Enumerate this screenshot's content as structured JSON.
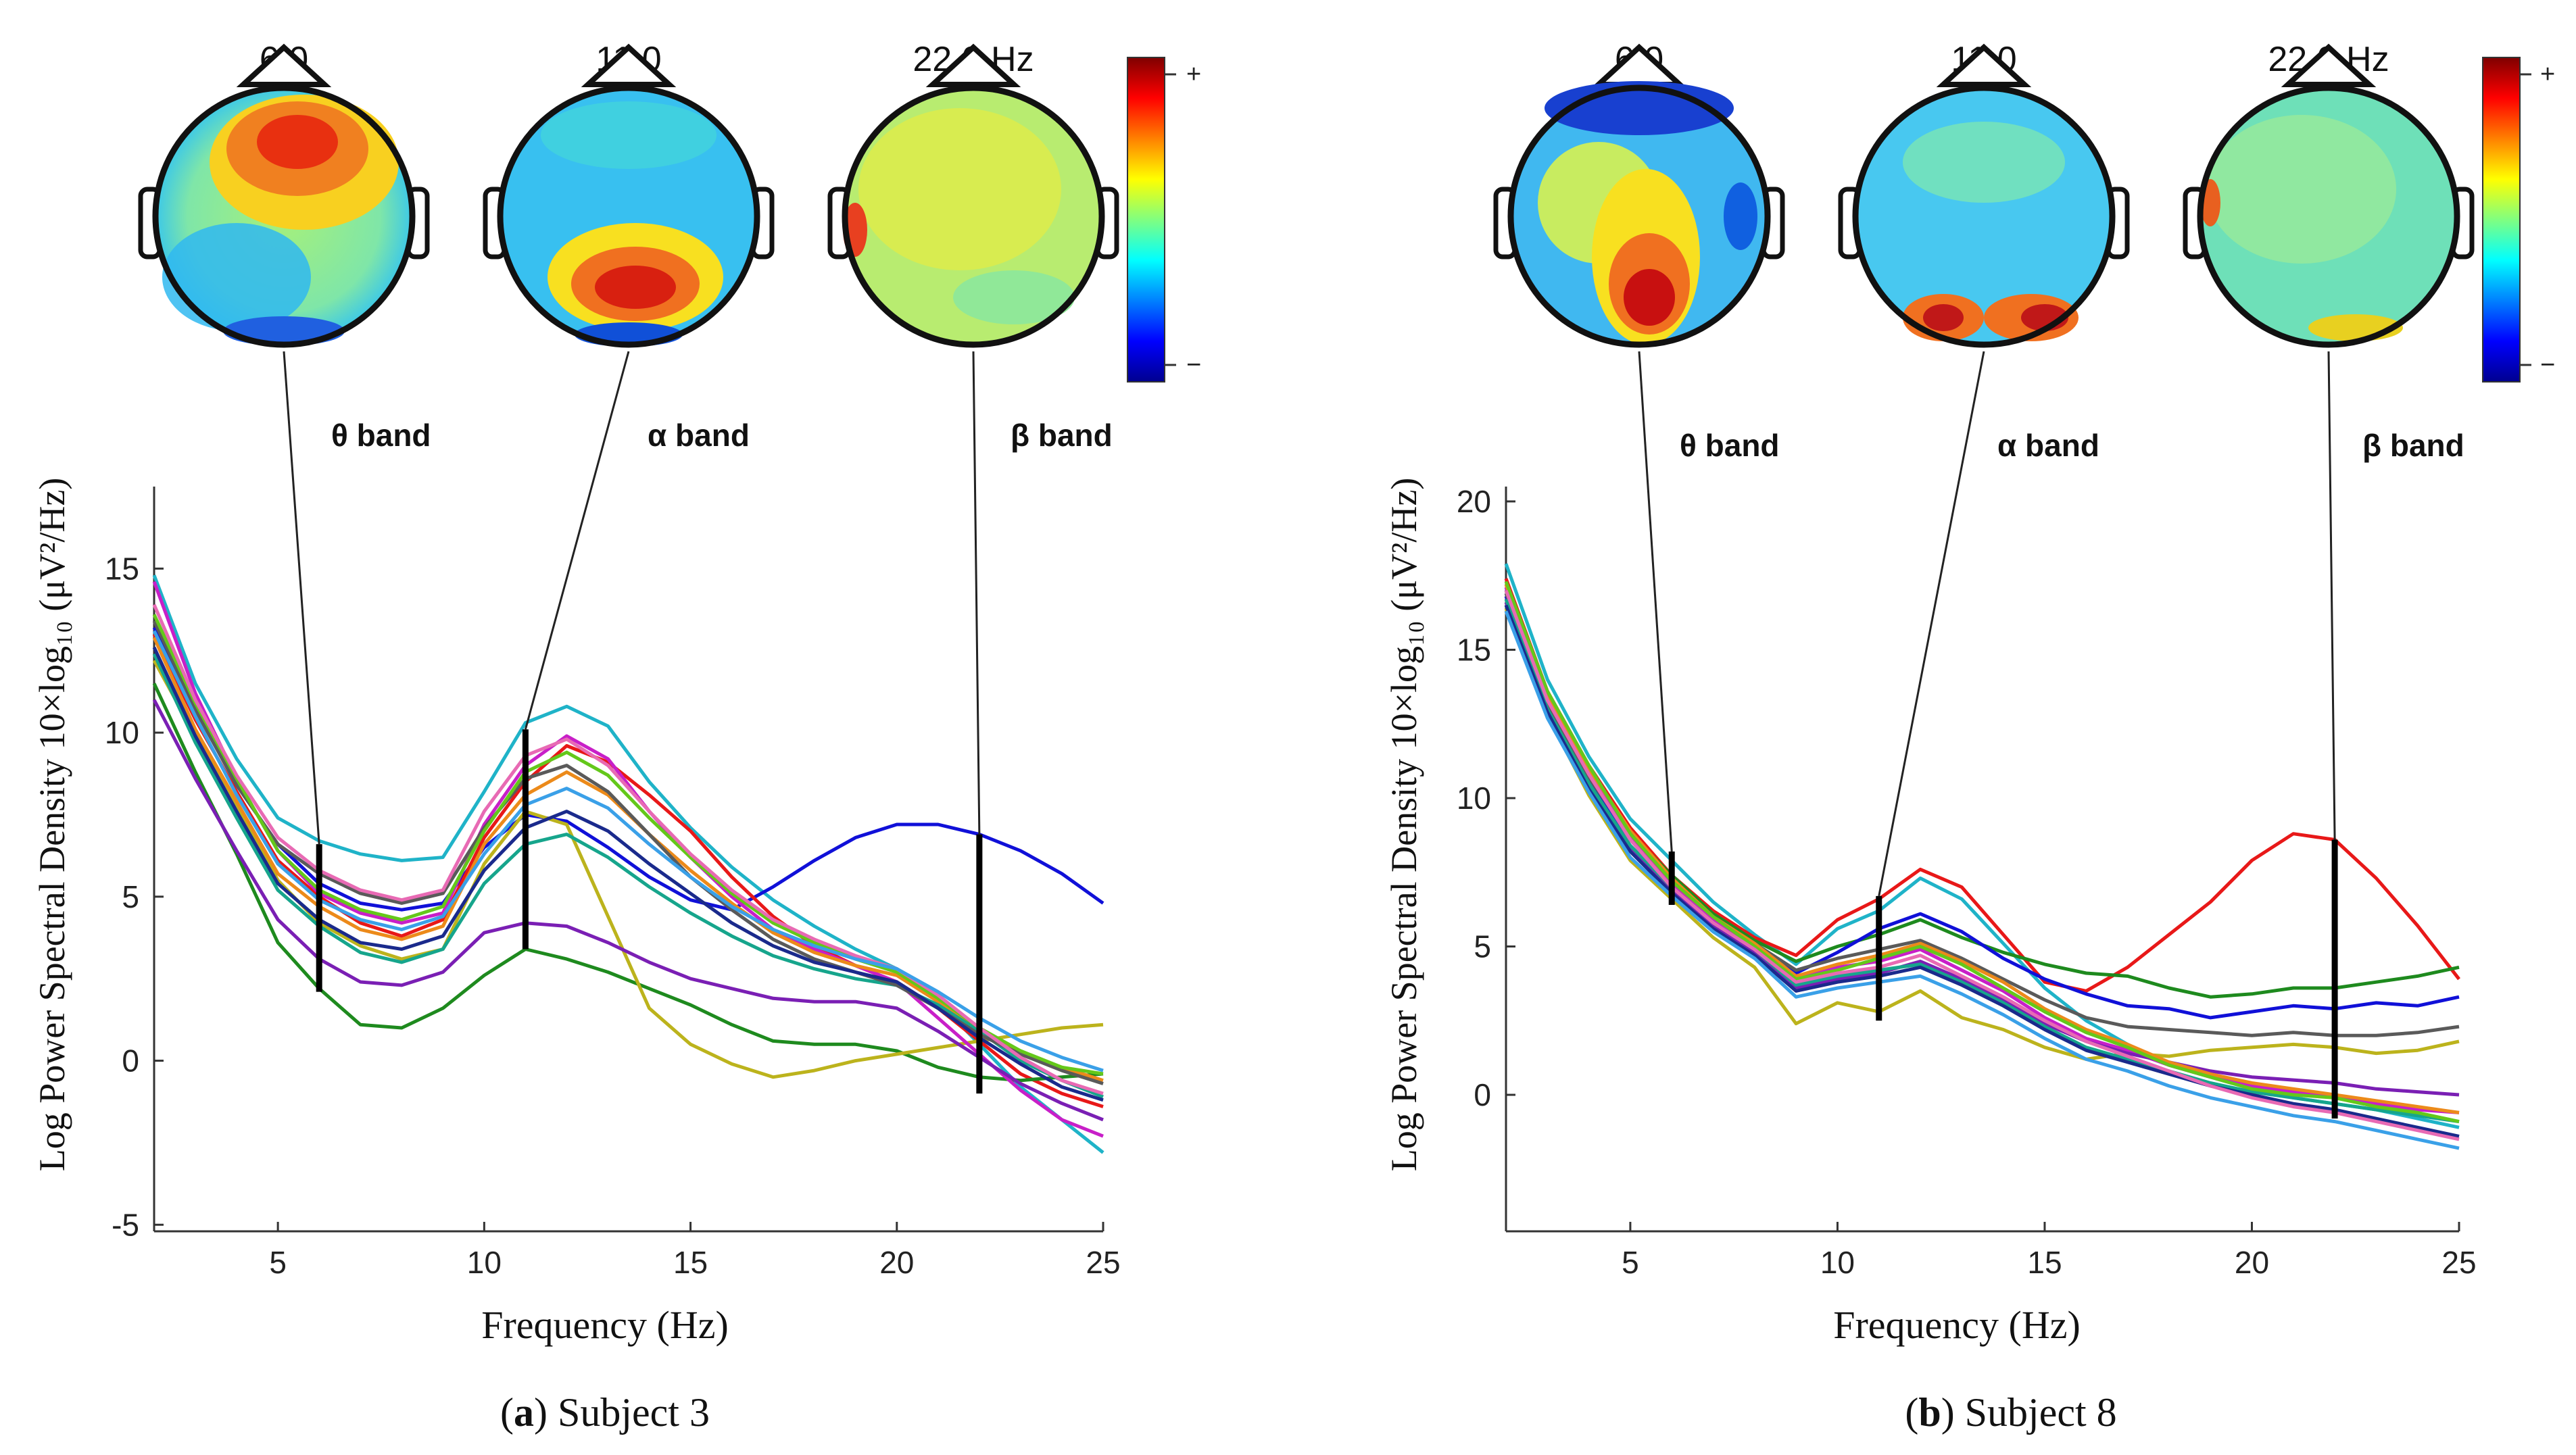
{
  "chart_data": [
    {
      "type": "line",
      "panel_id": "a",
      "caption_prefix": "(",
      "caption_letter": "a",
      "caption_text": ") Subject 3",
      "ylabel": "Log Power Spectral Density 10×log₁₀ (μV²/Hz)",
      "xlabel": "Frequency (Hz)",
      "xlim": [
        2,
        25
      ],
      "ylim": [
        -5.2,
        17.5
      ],
      "xticks": [
        5,
        10,
        15,
        20,
        25
      ],
      "yticks": [
        -5,
        0,
        5,
        10,
        15
      ],
      "ytick_labels": [
        "-5",
        "0",
        "5",
        "10",
        "15"
      ],
      "band_labels": [
        "θ band",
        "α band",
        "β band"
      ],
      "band_freqs": [
        6,
        11,
        22
      ],
      "band_ranges": [
        [
          2.1,
          6.6
        ],
        [
          3.4,
          10.1
        ],
        [
          -1.0,
          6.9
        ]
      ],
      "topomap_titles": [
        "6.0",
        "11.0",
        "22.0 Hz"
      ],
      "colorbar_labels": [
        "+",
        "−"
      ],
      "colorbar_colors": [
        "#7f0000",
        "#ff0000",
        "#ff8000",
        "#ffff00",
        "#80ff80",
        "#00ffff",
        "#0080ff",
        "#0000ff",
        "#00008f"
      ],
      "x": [
        2,
        3,
        4,
        5,
        6,
        7,
        8,
        9,
        10,
        11,
        12,
        13,
        14,
        15,
        16,
        17,
        18,
        19,
        20,
        21,
        22,
        23,
        24,
        25
      ],
      "series": [
        {
          "name": "ch-a-upper",
          "color": "#1fb3c8",
          "values": [
            14.8,
            11.5,
            9.2,
            7.4,
            6.7,
            6.3,
            6.1,
            6.2,
            8.2,
            10.3,
            10.8,
            10.2,
            8.5,
            7.1,
            5.9,
            4.9,
            4.1,
            3.4,
            2.8,
            1.8,
            0.5,
            -0.8,
            -1.8,
            -2.8
          ]
        },
        {
          "name": "ch-a-blue-outlier",
          "color": "#1010d8",
          "values": [
            13.2,
            10.7,
            8.4,
            6.6,
            5.4,
            4.8,
            4.6,
            4.8,
            6.5,
            7.5,
            7.3,
            6.5,
            5.6,
            4.9,
            4.6,
            5.3,
            6.1,
            6.8,
            7.2,
            7.2,
            6.9,
            6.4,
            5.7,
            4.8
          ]
        },
        {
          "name": "ch-a-red",
          "color": "#e81818",
          "values": [
            13.0,
            10.4,
            8.2,
            6.1,
            5.0,
            4.2,
            3.8,
            4.3,
            6.8,
            8.5,
            9.6,
            9.1,
            8.1,
            7.0,
            5.6,
            4.4,
            3.5,
            2.9,
            2.4,
            1.6,
            0.6,
            -0.4,
            -1.0,
            -1.4
          ]
        },
        {
          "name": "ch-a-darkgreen-low",
          "color": "#1e8a1e",
          "values": [
            11.5,
            8.8,
            6.3,
            3.6,
            2.2,
            1.1,
            1.0,
            1.6,
            2.6,
            3.4,
            3.1,
            2.7,
            2.2,
            1.7,
            1.1,
            0.6,
            0.5,
            0.5,
            0.3,
            -0.2,
            -0.5,
            -0.6,
            -0.5,
            -0.4
          ]
        },
        {
          "name": "ch-a-olive",
          "color": "#bcb31c",
          "values": [
            12.2,
            9.9,
            7.8,
            5.5,
            4.2,
            3.5,
            3.1,
            3.4,
            6.0,
            7.6,
            7.2,
            4.4,
            1.6,
            0.5,
            -0.1,
            -0.5,
            -0.3,
            0.0,
            0.2,
            0.4,
            0.6,
            0.8,
            1.0,
            1.1
          ]
        },
        {
          "name": "ch-a-magenta",
          "color": "#c81fc8",
          "values": [
            14.6,
            11.2,
            8.6,
            6.4,
            5.1,
            4.5,
            4.2,
            4.5,
            7.2,
            9.0,
            9.9,
            9.2,
            7.6,
            6.2,
            5.0,
            4.0,
            3.4,
            2.9,
            2.4,
            1.3,
            0.2,
            -0.9,
            -1.8,
            -2.3
          ]
        },
        {
          "name": "ch-a-purple",
          "color": "#7a1fb4",
          "values": [
            11.0,
            8.6,
            6.4,
            4.3,
            3.1,
            2.4,
            2.3,
            2.7,
            3.9,
            4.2,
            4.1,
            3.6,
            3.0,
            2.5,
            2.2,
            1.9,
            1.8,
            1.8,
            1.6,
            0.9,
            0.1,
            -0.7,
            -1.3,
            -1.8
          ]
        },
        {
          "name": "ch-a-orange",
          "color": "#ec8a1a",
          "values": [
            12.9,
            10.1,
            7.9,
            5.7,
            4.7,
            4.0,
            3.7,
            4.1,
            6.6,
            8.1,
            8.8,
            8.1,
            6.9,
            5.8,
            4.8,
            3.9,
            3.3,
            2.9,
            2.6,
            1.8,
            0.9,
            0.2,
            -0.2,
            -0.6
          ]
        },
        {
          "name": "ch-a-teal",
          "color": "#16a58c",
          "values": [
            12.4,
            9.7,
            7.4,
            5.2,
            4.1,
            3.3,
            3.0,
            3.4,
            5.4,
            6.6,
            6.9,
            6.2,
            5.3,
            4.5,
            3.8,
            3.2,
            2.8,
            2.5,
            2.3,
            1.7,
            0.9,
            0.0,
            -0.6,
            -1.1
          ]
        },
        {
          "name": "ch-a-gray",
          "color": "#5a5a5a",
          "values": [
            13.4,
            10.7,
            8.4,
            6.6,
            5.7,
            5.1,
            4.8,
            5.1,
            7.1,
            8.6,
            9.0,
            8.2,
            6.9,
            5.6,
            4.6,
            3.7,
            3.1,
            2.7,
            2.3,
            1.6,
            0.8,
            0.2,
            -0.3,
            -0.7
          ]
        },
        {
          "name": "ch-a-lime",
          "color": "#64c81a",
          "values": [
            13.6,
            10.9,
            8.6,
            6.4,
            5.2,
            4.6,
            4.3,
            4.7,
            7.0,
            8.8,
            9.4,
            8.7,
            7.4,
            6.2,
            5.1,
            4.2,
            3.6,
            3.1,
            2.7,
            1.9,
            1.0,
            0.3,
            -0.2,
            -0.4
          ]
        },
        {
          "name": "ch-a-navy",
          "color": "#1a2a8c",
          "values": [
            12.6,
            9.9,
            7.6,
            5.4,
            4.3,
            3.6,
            3.4,
            3.8,
            5.8,
            7.1,
            7.6,
            7.0,
            6.0,
            5.1,
            4.2,
            3.5,
            3.0,
            2.7,
            2.4,
            1.6,
            0.7,
            -0.1,
            -0.8,
            -1.2
          ]
        },
        {
          "name": "ch-a-pink",
          "color": "#e86ab4",
          "values": [
            13.9,
            11.0,
            8.7,
            6.8,
            5.8,
            5.2,
            4.9,
            5.2,
            7.6,
            9.3,
            9.8,
            9.0,
            7.6,
            6.3,
            5.2,
            4.3,
            3.7,
            3.2,
            2.8,
            2.0,
            1.0,
            0.1,
            -0.6,
            -1.0
          ]
        },
        {
          "name": "ch-a-skyblue",
          "color": "#3aa0e8",
          "values": [
            13.1,
            10.5,
            8.1,
            6.0,
            4.9,
            4.3,
            4.0,
            4.4,
            6.3,
            7.8,
            8.3,
            7.7,
            6.6,
            5.6,
            4.7,
            4.0,
            3.5,
            3.1,
            2.8,
            2.1,
            1.3,
            0.6,
            0.1,
            -0.3
          ]
        }
      ]
    },
    {
      "type": "line",
      "panel_id": "b",
      "caption_prefix": "(",
      "caption_letter": "b",
      "caption_text": ") Subject 8",
      "ylabel": "Log Power Spectral Density 10×log₁₀ (μV²/Hz)",
      "xlabel": "Frequency (Hz)",
      "xlim": [
        2,
        25
      ],
      "ylim": [
        -4.6,
        20.5
      ],
      "xticks": [
        5,
        10,
        15,
        20,
        25
      ],
      "yticks": [
        0,
        5,
        10,
        15,
        20
      ],
      "ytick_labels": [
        "0",
        "5",
        "10",
        "15",
        "20"
      ],
      "band_labels": [
        "θ band",
        "α band",
        "β band"
      ],
      "band_freqs": [
        6,
        11,
        22
      ],
      "band_ranges": [
        [
          6.4,
          8.2
        ],
        [
          2.5,
          6.7
        ],
        [
          -0.8,
          8.6
        ]
      ],
      "topomap_titles": [
        "6.0",
        "11.0",
        "22.0 Hz"
      ],
      "colorbar_labels": [
        "+",
        "−"
      ],
      "colorbar_colors": [
        "#7f0000",
        "#ff0000",
        "#ff8000",
        "#ffff00",
        "#80ff80",
        "#00ffff",
        "#0080ff",
        "#0000ff",
        "#00008f"
      ],
      "x": [
        2,
        3,
        4,
        5,
        6,
        7,
        8,
        9,
        10,
        11,
        12,
        13,
        14,
        15,
        16,
        17,
        18,
        19,
        20,
        21,
        22,
        23,
        24,
        25
      ],
      "series": [
        {
          "name": "ch-b-cyan",
          "color": "#1fb3c8",
          "values": [
            17.9,
            14.0,
            11.4,
            9.3,
            7.9,
            6.5,
            5.4,
            4.4,
            5.6,
            6.2,
            7.3,
            6.6,
            5.1,
            3.6,
            2.5,
            1.7,
            1.0,
            0.6,
            0.2,
            -0.1,
            -0.3,
            -0.5,
            -0.8,
            -1.1
          ]
        },
        {
          "name": "ch-b-red-outlier",
          "color": "#e81818",
          "values": [
            17.4,
            13.6,
            11.1,
            9.0,
            7.4,
            6.2,
            5.3,
            4.7,
            5.9,
            6.6,
            7.6,
            7.0,
            5.4,
            3.8,
            3.5,
            4.3,
            5.4,
            6.5,
            7.9,
            8.8,
            8.6,
            7.3,
            5.7,
            3.9
          ]
        },
        {
          "name": "ch-b-darkgreen",
          "color": "#1e8a1e",
          "values": [
            17.0,
            13.3,
            10.8,
            8.8,
            7.4,
            6.1,
            5.2,
            4.5,
            5.0,
            5.4,
            5.9,
            5.3,
            4.8,
            4.4,
            4.1,
            4.0,
            3.6,
            3.3,
            3.4,
            3.6,
            3.6,
            3.8,
            4.0,
            4.3
          ]
        },
        {
          "name": "ch-b-blue",
          "color": "#1010d8",
          "values": [
            16.8,
            13.1,
            10.6,
            8.6,
            7.1,
            5.9,
            5.0,
            4.1,
            4.8,
            5.6,
            6.1,
            5.5,
            4.6,
            3.9,
            3.4,
            3.0,
            2.9,
            2.6,
            2.8,
            3.0,
            2.9,
            3.1,
            3.0,
            3.3
          ]
        },
        {
          "name": "ch-b-olive",
          "color": "#bcb31c",
          "values": [
            16.4,
            12.8,
            10.1,
            7.9,
            6.6,
            5.3,
            4.3,
            2.4,
            3.1,
            2.8,
            3.5,
            2.6,
            2.2,
            1.6,
            1.2,
            1.4,
            1.3,
            1.5,
            1.6,
            1.7,
            1.6,
            1.4,
            1.5,
            1.8
          ]
        },
        {
          "name": "ch-b-gray",
          "color": "#5a5a5a",
          "values": [
            16.9,
            13.2,
            10.7,
            8.7,
            7.2,
            6.0,
            5.1,
            4.2,
            4.6,
            4.9,
            5.2,
            4.6,
            3.9,
            3.2,
            2.6,
            2.3,
            2.2,
            2.1,
            2.0,
            2.1,
            2.0,
            2.0,
            2.1,
            2.3
          ]
        },
        {
          "name": "ch-b-magenta",
          "color": "#c81fc8",
          "values": [
            17.1,
            13.4,
            10.9,
            8.7,
            7.1,
            5.9,
            5.0,
            3.9,
            4.3,
            4.5,
            4.9,
            4.2,
            3.5,
            2.6,
            1.9,
            1.5,
            1.0,
            0.6,
            0.3,
            0.1,
            0.0,
            -0.3,
            -0.5,
            -0.6
          ]
        },
        {
          "name": "ch-b-purple",
          "color": "#7a1fb4",
          "values": [
            16.6,
            12.9,
            10.4,
            8.3,
            6.9,
            5.7,
            4.8,
            3.6,
            3.9,
            4.1,
            4.5,
            3.9,
            3.2,
            2.4,
            1.8,
            1.4,
            1.1,
            0.8,
            0.6,
            0.5,
            0.4,
            0.2,
            0.1,
            0.0
          ]
        },
        {
          "name": "ch-b-orange",
          "color": "#ec8a1a",
          "values": [
            17.2,
            13.5,
            11.0,
            8.9,
            7.3,
            6.0,
            5.1,
            4.0,
            4.4,
            4.7,
            5.1,
            4.5,
            3.8,
            2.9,
            2.2,
            1.7,
            1.1,
            0.7,
            0.4,
            0.2,
            0.0,
            -0.2,
            -0.4,
            -0.6
          ]
        },
        {
          "name": "ch-b-teal",
          "color": "#16a58c",
          "values": [
            16.7,
            13.0,
            10.5,
            8.4,
            7.0,
            5.8,
            4.9,
            3.7,
            4.0,
            4.2,
            4.4,
            3.8,
            3.1,
            2.3,
            1.6,
            1.2,
            0.8,
            0.4,
            0.1,
            -0.1,
            -0.3,
            -0.5,
            -0.7,
            -0.9
          ]
        },
        {
          "name": "ch-b-lime",
          "color": "#64c81a",
          "values": [
            17.3,
            13.6,
            11.1,
            8.8,
            7.2,
            6.0,
            5.0,
            3.9,
            4.2,
            4.6,
            5.0,
            4.4,
            3.6,
            2.8,
            2.1,
            1.6,
            1.0,
            0.6,
            0.2,
            0.0,
            -0.1,
            -0.4,
            -0.6,
            -0.9
          ]
        },
        {
          "name": "ch-b-navy",
          "color": "#1a2a8c",
          "values": [
            16.5,
            12.9,
            10.3,
            8.2,
            6.8,
            5.6,
            4.7,
            3.5,
            3.8,
            4.0,
            4.3,
            3.7,
            3.0,
            2.2,
            1.5,
            1.1,
            0.7,
            0.3,
            0.0,
            -0.3,
            -0.5,
            -0.8,
            -1.1,
            -1.4
          ]
        },
        {
          "name": "ch-b-pink",
          "color": "#e86ab4",
          "values": [
            17.0,
            13.3,
            10.8,
            8.6,
            7.0,
            5.8,
            4.9,
            3.8,
            4.1,
            4.3,
            4.7,
            4.0,
            3.3,
            2.5,
            1.8,
            1.3,
            0.8,
            0.3,
            -0.1,
            -0.4,
            -0.6,
            -0.9,
            -1.2,
            -1.5
          ]
        },
        {
          "name": "ch-b-skyblue",
          "color": "#3aa0e8",
          "values": [
            16.3,
            12.7,
            10.2,
            8.0,
            6.7,
            5.5,
            4.6,
            3.3,
            3.6,
            3.8,
            4.0,
            3.4,
            2.7,
            1.9,
            1.2,
            0.8,
            0.3,
            -0.1,
            -0.4,
            -0.7,
            -0.9,
            -1.2,
            -1.5,
            -1.8
          ]
        }
      ]
    }
  ]
}
